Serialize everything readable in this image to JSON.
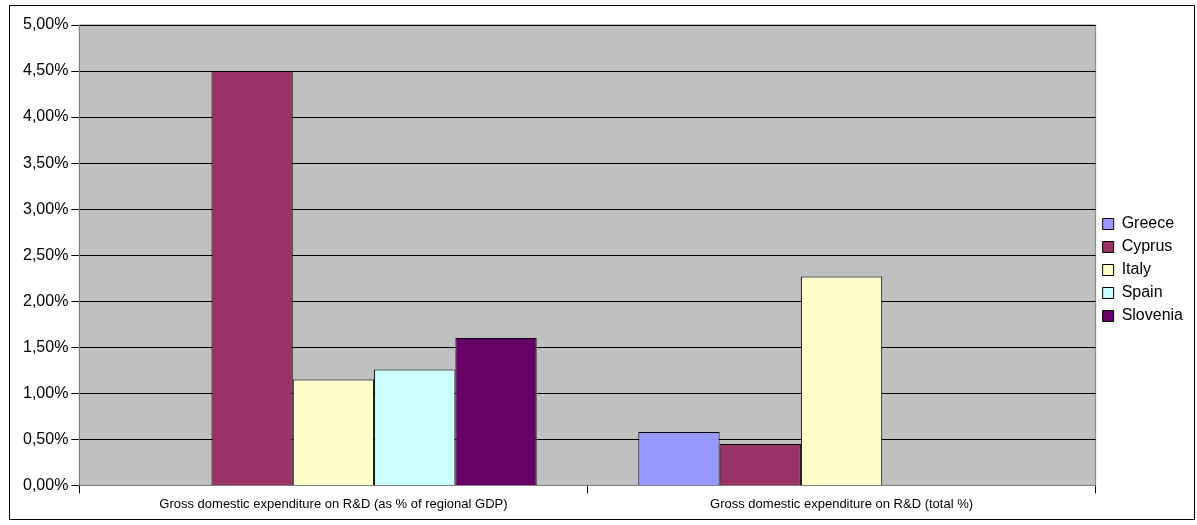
{
  "chart_data": {
    "type": "bar",
    "categories": [
      "Gross domestic expenditure on R&D (as % of regional GDP)",
      "Gross domestic expenditure on R&D (total %)"
    ],
    "series": [
      {
        "name": "Greece",
        "color": "#9999ff",
        "values": [
          null,
          0.58
        ]
      },
      {
        "name": "Cyprus",
        "color": "#993366",
        "values": [
          4.5,
          0.45
        ]
      },
      {
        "name": "Italy",
        "color": "#ffffcc",
        "values": [
          1.15,
          2.27
        ]
      },
      {
        "name": "Spain",
        "color": "#ccffff",
        "values": [
          1.26,
          null
        ]
      },
      {
        "name": "Slovenia",
        "color": "#660066",
        "values": [
          1.6,
          null
        ]
      }
    ],
    "ylim": [
      0,
      5
    ],
    "yticks": [
      {
        "value": 0,
        "label": "0,00%"
      },
      {
        "value": 0.5,
        "label": "0,50%"
      },
      {
        "value": 1,
        "label": "1,00%"
      },
      {
        "value": 1.5,
        "label": "1,50%"
      },
      {
        "value": 2,
        "label": "2,00%"
      },
      {
        "value": 2.5,
        "label": "2,50%"
      },
      {
        "value": 3,
        "label": "3,00%"
      },
      {
        "value": 3.5,
        "label": "3,50%"
      },
      {
        "value": 4,
        "label": "4,00%"
      },
      {
        "value": 4.5,
        "label": "4,50%"
      },
      {
        "value": 5,
        "label": "5,00%"
      }
    ],
    "grid": "y",
    "legend": "right"
  }
}
